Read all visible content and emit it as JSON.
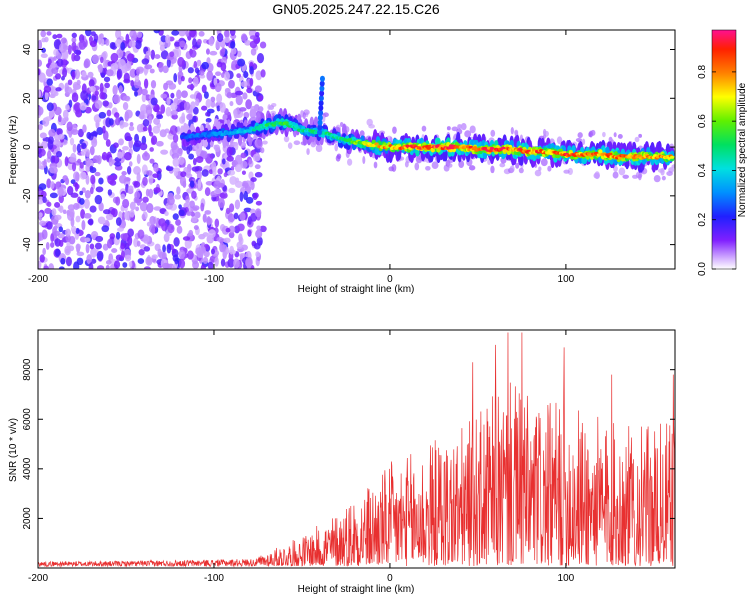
{
  "title": "GN05.2025.247.22.15.C26",
  "chart_data": [
    {
      "type": "heatmap",
      "title": "GN05.2025.247.22.15.C26",
      "xlabel": "Height of straight line (km)",
      "ylabel": "Frequency (Hz)",
      "xlim": [
        -200,
        162
      ],
      "ylim": [
        -50,
        48
      ],
      "xticks": [
        -200,
        -100,
        0,
        100
      ],
      "yticks": [
        -40,
        -20,
        0,
        20,
        40
      ],
      "colorbar": {
        "label": "Normalized spectral amplitude",
        "range": [
          0.0,
          0.97
        ],
        "ticks": [
          0.0,
          0.2,
          0.4,
          0.6,
          0.8
        ],
        "colormap": "rainbow (violet → blue → cyan → green → yellow → red → magenta)"
      },
      "noise_region_x": [
        -200,
        -72
      ],
      "ridge": {
        "description": "Dominant frequency trace (center frequency in Hz vs height)",
        "x": [
          -118,
          -105,
          -90,
          -80,
          -70,
          -60,
          -50,
          -40,
          -30,
          -20,
          -10,
          0,
          10,
          20,
          30,
          40,
          50,
          60,
          70,
          80,
          90,
          100,
          110,
          120,
          130,
          140,
          150,
          160
        ],
        "y": [
          4,
          5,
          6,
          7,
          9,
          10,
          7,
          6,
          4,
          2,
          1,
          0,
          0,
          0,
          0,
          0,
          -1,
          -1,
          -1,
          -2,
          -2,
          -3,
          -3,
          -3,
          -4,
          -4,
          -4,
          -4
        ],
        "peak_amplitude": [
          0.25,
          0.3,
          0.35,
          0.4,
          0.5,
          0.55,
          0.45,
          0.5,
          0.45,
          0.6,
          0.7,
          0.8,
          0.85,
          0.9,
          0.9,
          0.9,
          0.85,
          0.9,
          0.85,
          0.85,
          0.8,
          0.85,
          0.8,
          0.85,
          0.8,
          0.85,
          0.8,
          0.8
        ]
      }
    },
    {
      "type": "line",
      "xlabel": "Height of straight line (km)",
      "ylabel": "SNR (10 * v/v)",
      "xlim": [
        -200,
        162
      ],
      "ylim": [
        0,
        9600
      ],
      "xticks": [
        -200,
        -100,
        0,
        100
      ],
      "yticks": [
        2000,
        4000,
        6000,
        8000
      ],
      "color": "#e83030",
      "envelope": {
        "description": "Approximate SNR envelope (typical max per interval) of the noisy trace",
        "x": [
          -200,
          -150,
          -100,
          -75,
          -60,
          -50,
          -40,
          -30,
          -20,
          -10,
          0,
          10,
          20,
          30,
          40,
          50,
          60,
          70,
          80,
          90,
          100,
          110,
          120,
          130,
          140,
          150,
          160
        ],
        "y": [
          250,
          280,
          350,
          400,
          900,
          1200,
          1700,
          2200,
          3000,
          3400,
          4200,
          4500,
          5000,
          5300,
          5600,
          6200,
          7000,
          7500,
          6800,
          6500,
          7200,
          6300,
          6000,
          5800,
          5700,
          5600,
          6000
        ]
      },
      "peaks": [
        {
          "x": 47,
          "y": 8300
        },
        {
          "x": 60,
          "y": 9000
        },
        {
          "x": 67,
          "y": 9500
        },
        {
          "x": 75,
          "y": 9500
        },
        {
          "x": 99,
          "y": 8900
        },
        {
          "x": 126,
          "y": 7800
        },
        {
          "x": 161,
          "y": 7800
        }
      ]
    }
  ]
}
